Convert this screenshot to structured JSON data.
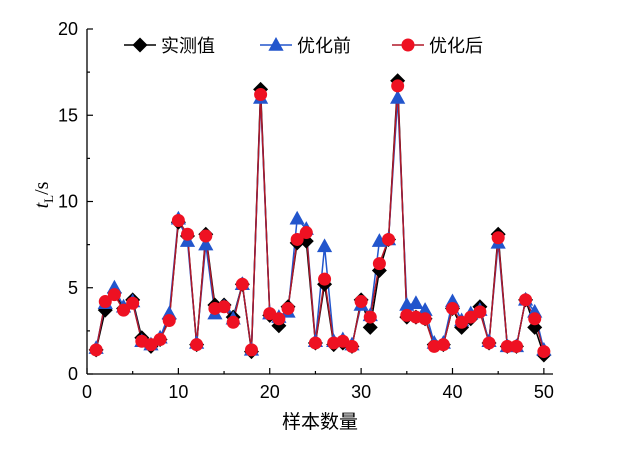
{
  "chart_data": {
    "type": "line",
    "title": "",
    "xlabel": "样本数量",
    "ylabel": {
      "symbol": "t",
      "subscript": "L",
      "unit": "/s"
    },
    "xlim": [
      0,
      51
    ],
    "ylim": [
      0,
      20
    ],
    "xticks": [
      0,
      10,
      20,
      30,
      40,
      50
    ],
    "yticks": [
      0,
      5,
      10,
      15,
      20
    ],
    "legend_position": "top-right",
    "x": [
      1,
      2,
      3,
      4,
      5,
      6,
      7,
      8,
      9,
      10,
      11,
      12,
      13,
      14,
      15,
      16,
      17,
      18,
      19,
      20,
      21,
      22,
      23,
      24,
      25,
      26,
      27,
      28,
      29,
      30,
      31,
      32,
      33,
      34,
      35,
      36,
      37,
      38,
      39,
      40,
      41,
      42,
      43,
      44,
      45,
      46,
      47,
      48,
      49,
      50
    ],
    "series": [
      {
        "name": "实测值",
        "marker": "diamond",
        "color": "#000000",
        "line_color": "#000000",
        "values": [
          1.4,
          3.7,
          4.7,
          3.8,
          4.3,
          2.1,
          1.6,
          2.0,
          3.2,
          8.8,
          8.0,
          1.7,
          8.1,
          4.0,
          4.0,
          3.3,
          5.2,
          1.3,
          16.5,
          3.4,
          2.8,
          3.9,
          7.6,
          7.7,
          1.8,
          5.2,
          1.7,
          1.8,
          1.6,
          4.3,
          2.7,
          6.0,
          7.8,
          17.0,
          3.3,
          3.3,
          3.2,
          1.7,
          1.7,
          3.8,
          2.7,
          3.2,
          3.9,
          1.8,
          8.1,
          1.6,
          1.6,
          4.3,
          2.7,
          1.1
        ]
      },
      {
        "name": "优化前",
        "marker": "triangle",
        "color": "#2255cc",
        "line_color": "#2255cc",
        "values": [
          1.5,
          4.1,
          5.0,
          3.9,
          4.2,
          1.9,
          1.7,
          2.1,
          3.5,
          9.0,
          7.7,
          1.8,
          7.5,
          3.5,
          3.9,
          3.2,
          5.2,
          1.4,
          16.0,
          3.5,
          3.3,
          3.6,
          9.0,
          8.4,
          1.9,
          7.4,
          1.9,
          2.0,
          1.7,
          4.0,
          3.4,
          7.7,
          7.8,
          16.0,
          4.0,
          4.1,
          3.7,
          1.8,
          1.8,
          4.2,
          3.1,
          3.5,
          3.7,
          1.9,
          7.6,
          1.6,
          1.6,
          4.3,
          3.6,
          1.4
        ]
      },
      {
        "name": "优化后",
        "marker": "circle",
        "color": "#ee1122",
        "line_color": "#b01828",
        "values": [
          1.4,
          4.2,
          4.6,
          3.7,
          4.1,
          1.9,
          1.7,
          2.0,
          3.1,
          8.9,
          8.1,
          1.7,
          8.0,
          3.8,
          3.9,
          3.0,
          5.2,
          1.4,
          16.2,
          3.5,
          3.2,
          3.8,
          7.8,
          8.2,
          1.8,
          5.5,
          1.8,
          1.9,
          1.6,
          4.2,
          3.3,
          6.4,
          7.8,
          16.7,
          3.4,
          3.3,
          3.2,
          1.6,
          1.7,
          3.8,
          3.0,
          3.3,
          3.6,
          1.8,
          7.9,
          1.6,
          1.6,
          4.3,
          3.2,
          1.3
        ]
      }
    ]
  }
}
